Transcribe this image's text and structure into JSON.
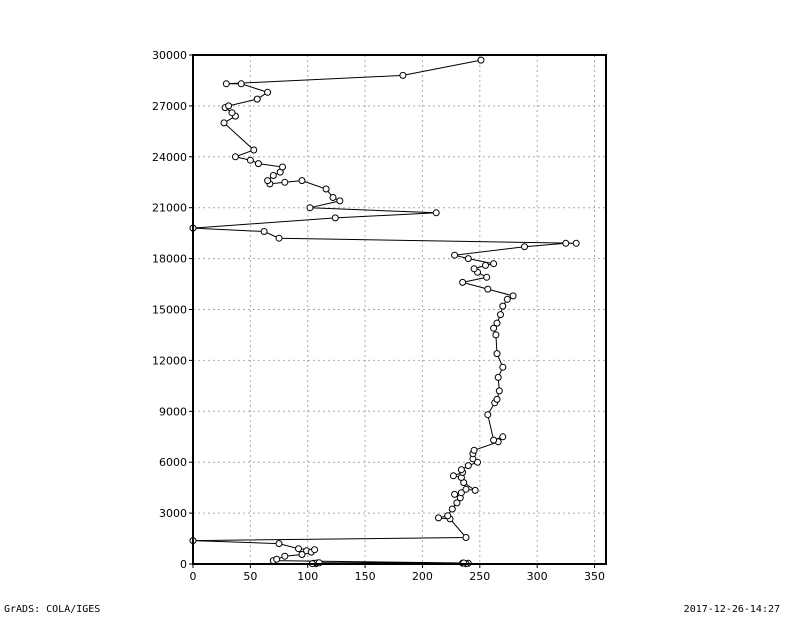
{
  "footer": {
    "left": "GrADS: COLA/IGES",
    "right": "2017-12-26-14:27"
  },
  "chart_data": {
    "type": "line",
    "title": "",
    "xlabel": "",
    "ylabel": "",
    "xlim": [
      0,
      360
    ],
    "ylim": [
      0,
      30000
    ],
    "xticks": [
      0,
      50,
      100,
      150,
      200,
      250,
      300,
      350
    ],
    "yticks": [
      0,
      3000,
      6000,
      9000,
      12000,
      15000,
      18000,
      21000,
      24000,
      27000,
      30000
    ],
    "grid": true,
    "marker": "circle",
    "series": [
      {
        "points": [
          [
            105,
            50
          ],
          [
            107,
            20
          ],
          [
            108,
            60
          ],
          [
            104,
            15
          ],
          [
            110,
            70
          ],
          [
            235,
            55
          ],
          [
            240,
            40
          ],
          [
            238,
            20
          ],
          [
            236,
            60
          ],
          [
            70,
            200
          ],
          [
            73,
            280
          ],
          [
            80,
            460
          ],
          [
            95,
            560
          ],
          [
            99,
            780
          ],
          [
            103,
            700
          ],
          [
            106,
            840
          ],
          [
            92,
            900
          ],
          [
            75,
            1200
          ],
          [
            0,
            1380
          ],
          [
            238,
            1560
          ],
          [
            224,
            2660
          ],
          [
            214,
            2720
          ],
          [
            222,
            2840
          ],
          [
            226,
            3240
          ],
          [
            230,
            3600
          ],
          [
            233,
            3900
          ],
          [
            228,
            4100
          ],
          [
            234,
            4200
          ],
          [
            238,
            4400
          ],
          [
            246,
            4340
          ],
          [
            236,
            4800
          ],
          [
            234,
            5100
          ],
          [
            227,
            5200
          ],
          [
            235,
            5400
          ],
          [
            234,
            5560
          ],
          [
            240,
            5800
          ],
          [
            248,
            6000
          ],
          [
            244,
            6200
          ],
          [
            244,
            6500
          ],
          [
            245,
            6700
          ],
          [
            266,
            7200
          ],
          [
            270,
            7500
          ],
          [
            262,
            7300
          ],
          [
            257,
            8800
          ],
          [
            263,
            9500
          ],
          [
            265,
            9700
          ],
          [
            267,
            10200
          ],
          [
            266,
            11000
          ],
          [
            270,
            11600
          ],
          [
            265,
            12400
          ],
          [
            264,
            13500
          ],
          [
            262,
            13900
          ],
          [
            265,
            14200
          ],
          [
            268,
            14700
          ],
          [
            270,
            15200
          ],
          [
            274,
            15600
          ],
          [
            279,
            15800
          ],
          [
            257,
            16200
          ],
          [
            235,
            16600
          ],
          [
            256,
            16900
          ],
          [
            248,
            17200
          ],
          [
            245,
            17400
          ],
          [
            255,
            17600
          ],
          [
            262,
            17700
          ],
          [
            240,
            18000
          ],
          [
            228,
            18200
          ],
          [
            289,
            18700
          ],
          [
            325,
            18900
          ],
          [
            334,
            18900
          ],
          [
            75,
            19200
          ],
          [
            62,
            19600
          ],
          [
            0,
            19800
          ],
          [
            124,
            20400
          ],
          [
            212,
            20700
          ],
          [
            102,
            21000
          ],
          [
            128,
            21400
          ],
          [
            122,
            21600
          ],
          [
            116,
            22100
          ],
          [
            95,
            22600
          ],
          [
            80,
            22500
          ],
          [
            67,
            22400
          ],
          [
            65,
            22600
          ],
          [
            70,
            22900
          ],
          [
            76,
            23100
          ],
          [
            78,
            23400
          ],
          [
            57,
            23600
          ],
          [
            50,
            23800
          ],
          [
            37,
            24000
          ],
          [
            53,
            24400
          ],
          [
            27,
            26000
          ],
          [
            37,
            26400
          ],
          [
            34,
            26600
          ],
          [
            28,
            26900
          ],
          [
            31,
            27000
          ],
          [
            56,
            27400
          ],
          [
            65,
            27800
          ],
          [
            42,
            28300
          ],
          [
            29,
            28300
          ],
          [
            183,
            28800
          ],
          [
            251,
            29700
          ]
        ]
      }
    ]
  }
}
